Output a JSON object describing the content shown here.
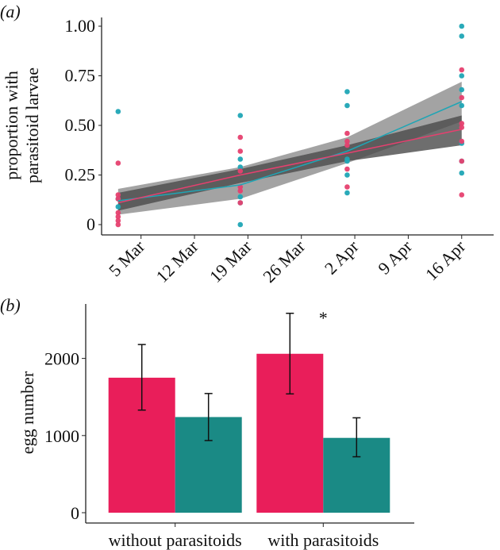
{
  "chart_data": [
    {
      "type": "scatter",
      "panel_label": "(a)",
      "ylabel_lines": [
        "proportion with",
        "parasitoid larvae"
      ],
      "xlabel": "",
      "ylim": [
        0,
        1
      ],
      "yticks": [
        0,
        0.25,
        0.5,
        0.75,
        1.0
      ],
      "ytick_labels": [
        "0",
        "0.25",
        "0.50",
        "0.75",
        "1.00"
      ],
      "xtick_days": [
        0,
        7,
        14,
        21,
        28,
        35,
        42
      ],
      "xtick_labels": [
        "5 Mar",
        "12 Mar",
        "19 Mar",
        "26 Mar",
        "2 Apr",
        "9 Apr",
        "16 Apr"
      ],
      "x_units": "days since 5 Mar",
      "grid": false,
      "series": [
        {
          "name": "teal",
          "color": "#1fa5b5",
          "points": [
            [
              -3,
              0.57
            ],
            [
              -3,
              0.13
            ],
            [
              -3,
              0.09
            ],
            [
              13,
              0.55
            ],
            [
              13,
              0.33
            ],
            [
              13,
              0.29
            ],
            [
              13,
              0.14
            ],
            [
              13,
              0.11
            ],
            [
              13,
              0.0
            ],
            [
              27,
              0.67
            ],
            [
              27,
              0.6
            ],
            [
              27,
              0.33
            ],
            [
              27,
              0.32
            ],
            [
              27,
              0.25
            ],
            [
              27,
              0.16
            ],
            [
              42,
              1.0
            ],
            [
              42,
              0.95
            ],
            [
              42,
              0.75
            ],
            [
              42,
              0.68
            ],
            [
              42,
              0.6
            ],
            [
              42,
              0.41
            ],
            [
              42,
              0.32
            ],
            [
              42,
              0.26
            ]
          ],
          "fit": [
            [
              -3,
              0.12
            ],
            [
              13,
              0.2
            ],
            [
              27,
              0.37
            ],
            [
              42,
              0.62
            ]
          ],
          "ci_lower": [
            0.05,
            0.13,
            0.31,
            0.52
          ],
          "ci_upper": [
            0.18,
            0.29,
            0.44,
            0.72
          ],
          "ci_color": "#8c8c8c"
        },
        {
          "name": "pink",
          "color": "#e6406f",
          "points": [
            [
              -3,
              0.31
            ],
            [
              -3,
              0.15
            ],
            [
              -3,
              0.13
            ],
            [
              -3,
              0.06
            ],
            [
              -3,
              0.04
            ],
            [
              -3,
              0.02
            ],
            [
              -3,
              0.0
            ],
            [
              13,
              0.44
            ],
            [
              13,
              0.37
            ],
            [
              13,
              0.27
            ],
            [
              13,
              0.19
            ],
            [
              13,
              0.17
            ],
            [
              13,
              0.11
            ],
            [
              27,
              0.46
            ],
            [
              27,
              0.42
            ],
            [
              27,
              0.4
            ],
            [
              27,
              0.28
            ],
            [
              27,
              0.19
            ],
            [
              42,
              0.78
            ],
            [
              42,
              0.64
            ],
            [
              42,
              0.51
            ],
            [
              42,
              0.49
            ],
            [
              42,
              0.42
            ],
            [
              42,
              0.32
            ],
            [
              42,
              0.15
            ]
          ],
          "fit": [
            [
              -3,
              0.11
            ],
            [
              13,
              0.25
            ],
            [
              27,
              0.36
            ],
            [
              42,
              0.48
            ]
          ],
          "ci_lower": [
            0.07,
            0.21,
            0.32,
            0.4
          ],
          "ci_upper": [
            0.16,
            0.28,
            0.4,
            0.55
          ],
          "ci_color": "#4a4a4a"
        }
      ]
    },
    {
      "type": "bar",
      "panel_label": "(b)",
      "ylabel": "egg number",
      "xlabel": "",
      "ylim": [
        0,
        2700
      ],
      "yticks": [
        0,
        1000,
        2000
      ],
      "ytick_labels": [
        "0",
        "1000",
        "2000"
      ],
      "categories": [
        "without parasitoids",
        "with parasitoids"
      ],
      "series": [
        {
          "name": "pink",
          "color": "#e91e5a",
          "values": [
            1750,
            2060
          ],
          "err_low": [
            1330,
            1540
          ],
          "err_high": [
            2180,
            2585
          ]
        },
        {
          "name": "teal",
          "color": "#1a8a85",
          "values": [
            1240,
            970
          ],
          "err_low": [
            935,
            725
          ],
          "err_high": [
            1545,
            1230
          ]
        }
      ],
      "annotations": [
        {
          "text": "*",
          "category": "with parasitoids"
        }
      ]
    }
  ]
}
